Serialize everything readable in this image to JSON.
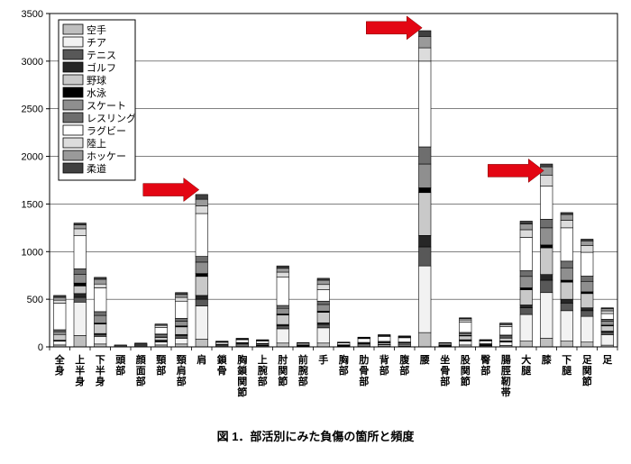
{
  "caption": "図 1．部活別にみた負傷の箇所と頻度",
  "chart": {
    "type": "stacked-bar",
    "ylim": [
      0,
      3500
    ],
    "ytick_step": 500,
    "grid_color": "#000000",
    "grid_width": 0.5,
    "axis_fontsize": 11,
    "xlabel_fontsize": 11,
    "legend_fontsize": 11,
    "background_color": "#ffffff",
    "series": [
      {
        "name": "空手",
        "color": "#bfbfbf"
      },
      {
        "name": "チア",
        "color": "#f2f2f2"
      },
      {
        "name": "テニス",
        "color": "#585858"
      },
      {
        "name": "ゴルフ",
        "color": "#262626"
      },
      {
        "name": "野球",
        "color": "#c9c9c9"
      },
      {
        "name": "水泳",
        "color": "#000000"
      },
      {
        "name": "スケート",
        "color": "#8f8f8f"
      },
      {
        "name": "レスリング",
        "color": "#6e6e6e"
      },
      {
        "name": "ラグビー",
        "color": "#ffffff"
      },
      {
        "name": "陸上",
        "color": "#dcdcdc"
      },
      {
        "name": "ホッケー",
        "color": "#9a9a9a"
      },
      {
        "name": "柔道",
        "color": "#404040"
      }
    ],
    "legend_box": {
      "stroke": "#000000",
      "fill": "#ffffff"
    },
    "categories": [
      "全身",
      "上半身",
      "下半身",
      "頭部",
      "顔面部",
      "頸部",
      "頸肩部",
      "肩",
      "鎖骨",
      "胸鎖関節",
      "上腕部",
      "肘関節",
      "前腕部",
      "手",
      "胸部",
      "肋骨部",
      "背部",
      "腹部",
      "腰",
      "坐骨部",
      "股関節",
      "臀部",
      "腸脛靭帯",
      "大腿",
      "膝",
      "下腿",
      "足関節",
      "足"
    ],
    "data": [
      [
        20,
        40,
        0,
        10,
        60,
        0,
        30,
        20,
        280,
        30,
        30,
        20
      ],
      [
        120,
        350,
        50,
        40,
        80,
        30,
        90,
        60,
        350,
        70,
        40,
        20
      ],
      [
        30,
        80,
        20,
        10,
        100,
        10,
        80,
        40,
        250,
        40,
        50,
        20
      ],
      [
        0,
        5,
        0,
        0,
        0,
        0,
        0,
        0,
        10,
        0,
        5,
        0
      ],
      [
        0,
        5,
        0,
        0,
        10,
        0,
        0,
        0,
        10,
        0,
        5,
        10
      ],
      [
        20,
        30,
        10,
        10,
        30,
        5,
        20,
        10,
        70,
        20,
        10,
        5
      ],
      [
        30,
        60,
        30,
        10,
        80,
        10,
        50,
        30,
        180,
        40,
        30,
        20
      ],
      [
        80,
        350,
        70,
        40,
        200,
        30,
        120,
        60,
        450,
        80,
        70,
        50
      ],
      [
        5,
        10,
        0,
        0,
        8,
        0,
        5,
        0,
        20,
        5,
        5,
        2
      ],
      [
        5,
        12,
        2,
        2,
        10,
        2,
        8,
        4,
        30,
        6,
        6,
        3
      ],
      [
        5,
        8,
        2,
        1,
        10,
        2,
        6,
        3,
        25,
        5,
        5,
        3
      ],
      [
        40,
        150,
        30,
        15,
        100,
        10,
        60,
        30,
        300,
        50,
        40,
        25
      ],
      [
        3,
        6,
        1,
        1,
        5,
        1,
        3,
        2,
        15,
        3,
        3,
        2
      ],
      [
        40,
        160,
        35,
        18,
        110,
        12,
        70,
        35,
        120,
        55,
        45,
        20
      ],
      [
        3,
        6,
        1,
        1,
        5,
        1,
        3,
        2,
        20,
        3,
        3,
        2
      ],
      [
        5,
        12,
        2,
        2,
        12,
        2,
        8,
        4,
        40,
        6,
        6,
        3
      ],
      [
        5,
        15,
        3,
        2,
        15,
        3,
        10,
        5,
        50,
        8,
        8,
        4
      ],
      [
        6,
        12,
        2,
        2,
        15,
        2,
        8,
        4,
        45,
        7,
        7,
        5
      ],
      [
        150,
        700,
        200,
        120,
        450,
        50,
        250,
        180,
        900,
        140,
        120,
        60
      ],
      [
        3,
        5,
        1,
        1,
        6,
        1,
        3,
        2,
        15,
        3,
        3,
        2
      ],
      [
        20,
        40,
        10,
        5,
        40,
        5,
        20,
        12,
        110,
        20,
        15,
        8
      ],
      [
        5,
        8,
        2,
        1,
        8,
        1,
        5,
        3,
        30,
        5,
        5,
        3
      ],
      [
        15,
        35,
        8,
        4,
        30,
        4,
        18,
        10,
        90,
        18,
        12,
        6
      ],
      [
        60,
        280,
        70,
        30,
        160,
        20,
        120,
        60,
        350,
        80,
        60,
        30
      ],
      [
        90,
        480,
        130,
        60,
        280,
        30,
        180,
        90,
        350,
        110,
        90,
        30
      ],
      [
        60,
        320,
        80,
        40,
        180,
        20,
        130,
        70,
        350,
        80,
        60,
        20
      ],
      [
        50,
        270,
        60,
        30,
        150,
        18,
        110,
        55,
        250,
        70,
        50,
        18
      ],
      [
        18,
        110,
        25,
        12,
        55,
        8,
        40,
        22,
        60,
        28,
        22,
        10
      ]
    ],
    "arrows": [
      {
        "x_index": 7,
        "y": 1650
      },
      {
        "x_index": 18,
        "y": 3350
      },
      {
        "x_index": 24,
        "y": 1850
      }
    ],
    "arrow_color": "#e30613"
  }
}
